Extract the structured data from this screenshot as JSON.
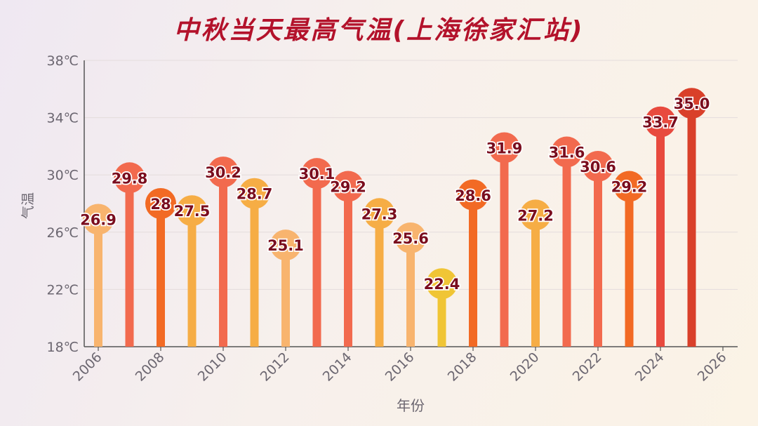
{
  "chart_data": {
    "type": "bar",
    "title": "中秋当天最高气温(上海徐家汇站)",
    "xlabel": "年份",
    "ylabel": "气温",
    "x": [
      2006,
      2007,
      2008,
      2009,
      2010,
      2011,
      2012,
      2013,
      2014,
      2015,
      2016,
      2017,
      2018,
      2019,
      2020,
      2021,
      2022,
      2023,
      2024,
      2025
    ],
    "values": [
      26.9,
      29.8,
      28,
      27.5,
      30.2,
      28.7,
      25.1,
      30.1,
      29.2,
      27.3,
      25.6,
      22.4,
      28.6,
      31.9,
      27.2,
      31.6,
      30.6,
      29.2,
      33.7,
      35.0
    ],
    "value_labels": [
      "26.9",
      "29.8",
      "28",
      "27.5",
      "30.2",
      "28.7",
      "25.1",
      "30.1",
      "29.2",
      "27.3",
      "25.6",
      "22.4",
      "28.6",
      "31.9",
      "27.2",
      "31.6",
      "30.6",
      "29.2",
      "33.7",
      "35.0"
    ],
    "colors": [
      "#f8b46e",
      "#f26a4e",
      "#f26a24",
      "#f6ad45",
      "#f26a4e",
      "#f6ad45",
      "#f8b46e",
      "#f26a4e",
      "#f26a4e",
      "#f6ad45",
      "#f8b46e",
      "#f0c535",
      "#f26a24",
      "#f26a4e",
      "#f6ad45",
      "#f26a4e",
      "#f26a4e",
      "#f26a24",
      "#e84a3e",
      "#d9402a"
    ],
    "ylim": [
      18,
      38
    ],
    "yticks": [
      18,
      22,
      26,
      30,
      34,
      38
    ],
    "ytick_labels": [
      "18℃",
      "22℃",
      "26℃",
      "30℃",
      "34℃",
      "38℃"
    ],
    "xlim": [
      2006,
      2026
    ],
    "xticks": [
      "2006",
      "2008",
      "2010",
      "2012",
      "2014",
      "2016",
      "2018",
      "2020",
      "2022",
      "2024",
      "2026"
    ],
    "grid": true,
    "style": "lollipop",
    "title_color": "#b3122b",
    "label_color": "#7a0d1e"
  }
}
